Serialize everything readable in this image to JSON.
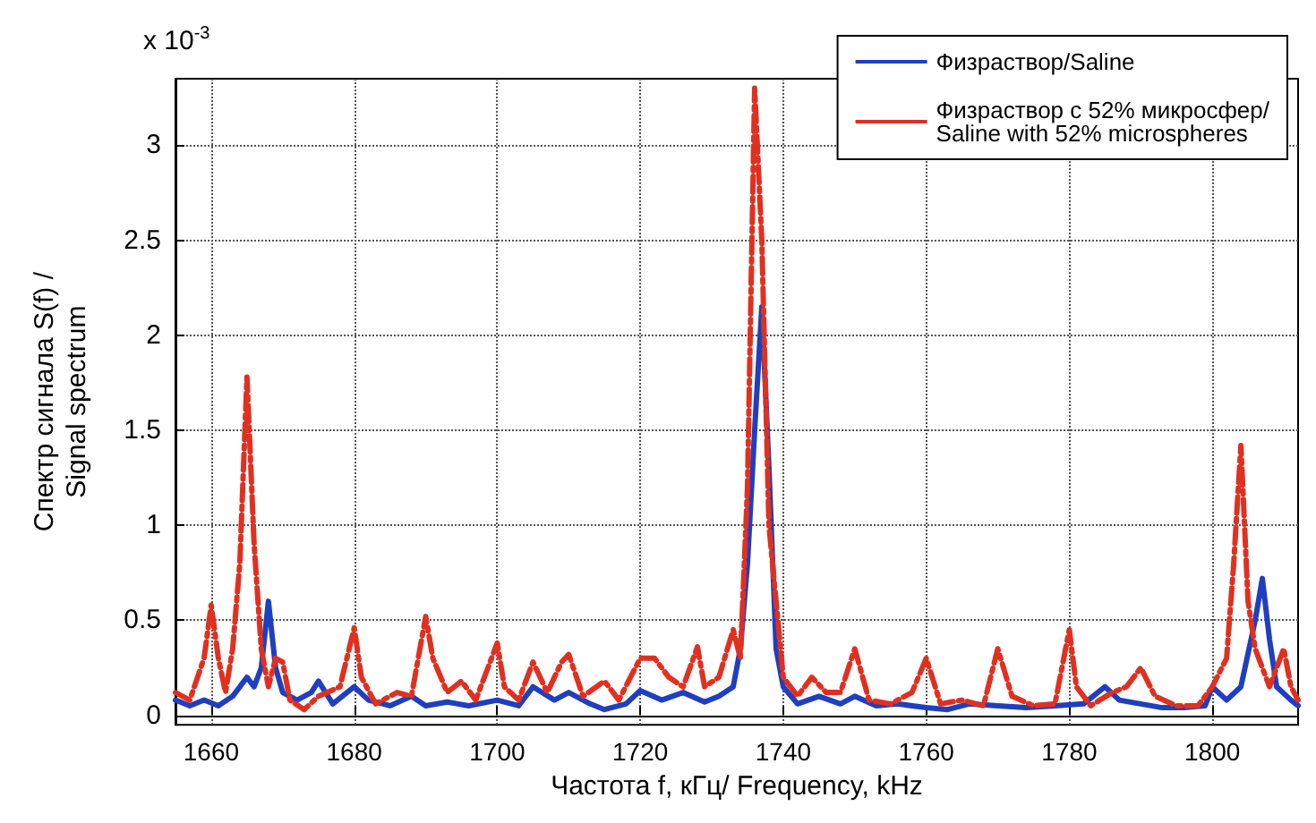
{
  "chart_data": {
    "type": "line",
    "xlabel": "Частота f, кГц/ Frequency, kHz",
    "ylabel": "Спектр сигнала S(f) /\nSignal spectrum",
    "annotations": [
      "x 10$^{-3}$"
    ],
    "xlim": [
      1655,
      1812
    ],
    "xticks": [
      1660,
      1680,
      1700,
      1720,
      1740,
      1760,
      1780,
      1800
    ],
    "ylim": [
      -0.05,
      3.35
    ],
    "yticks": [
      0,
      0.5,
      1,
      1.5,
      2,
      2.5,
      3
    ],
    "grid": true,
    "legend": "top right",
    "series": [
      {
        "name": "Физраствор/Saline",
        "color": "#1f3fbf",
        "line_style": "solid",
        "x": [
          1655,
          1657,
          1659,
          1661,
          1663,
          1665,
          1666,
          1667,
          1668,
          1669,
          1670,
          1672,
          1674,
          1675,
          1677,
          1680,
          1682,
          1685,
          1688,
          1690,
          1693,
          1696,
          1700,
          1703,
          1705,
          1708,
          1710,
          1713,
          1715,
          1718,
          1720,
          1723,
          1726,
          1729,
          1731,
          1733,
          1734,
          1735,
          1736,
          1737,
          1738,
          1739,
          1740,
          1742,
          1745,
          1748,
          1750,
          1753,
          1756,
          1760,
          1763,
          1766,
          1770,
          1774,
          1778,
          1782,
          1785,
          1787,
          1790,
          1793,
          1796,
          1799,
          1800,
          1802,
          1804,
          1806,
          1807,
          1808,
          1809,
          1811,
          1812
        ],
        "values": [
          0.08,
          0.05,
          0.08,
          0.05,
          0.1,
          0.2,
          0.15,
          0.25,
          0.6,
          0.25,
          0.12,
          0.08,
          0.12,
          0.18,
          0.06,
          0.15,
          0.08,
          0.05,
          0.1,
          0.05,
          0.07,
          0.05,
          0.08,
          0.05,
          0.15,
          0.08,
          0.12,
          0.06,
          0.03,
          0.06,
          0.13,
          0.08,
          0.12,
          0.07,
          0.1,
          0.15,
          0.35,
          0.8,
          1.5,
          2.15,
          1.3,
          0.35,
          0.15,
          0.06,
          0.1,
          0.06,
          0.1,
          0.05,
          0.06,
          0.04,
          0.03,
          0.06,
          0.05,
          0.04,
          0.05,
          0.06,
          0.15,
          0.08,
          0.06,
          0.04,
          0.04,
          0.05,
          0.15,
          0.08,
          0.15,
          0.5,
          0.72,
          0.4,
          0.15,
          0.08,
          0.05
        ]
      },
      {
        "name": "Физраствор с 52% микросфер/\nSaline with 52% microspheres",
        "color": "#e03020",
        "line_style": "dashed",
        "x": [
          1655,
          1657,
          1659,
          1660,
          1661,
          1662,
          1663,
          1664,
          1665,
          1666,
          1667,
          1668,
          1669,
          1670,
          1671,
          1673,
          1675,
          1678,
          1680,
          1681,
          1683,
          1686,
          1688,
          1690,
          1691,
          1693,
          1695,
          1697,
          1700,
          1701,
          1703,
          1705,
          1707,
          1709,
          1710,
          1712,
          1715,
          1717,
          1720,
          1722,
          1724,
          1726,
          1728,
          1729,
          1731,
          1733,
          1734,
          1735,
          1736,
          1737,
          1738,
          1739,
          1740,
          1742,
          1744,
          1746,
          1748,
          1750,
          1752,
          1755,
          1758,
          1760,
          1762,
          1765,
          1768,
          1770,
          1772,
          1775,
          1778,
          1780,
          1781,
          1783,
          1786,
          1788,
          1790,
          1792,
          1795,
          1798,
          1800,
          1802,
          1803,
          1804,
          1805,
          1806,
          1808,
          1809,
          1810,
          1811,
          1812
        ],
        "values": [
          0.12,
          0.08,
          0.3,
          0.58,
          0.3,
          0.12,
          0.35,
          0.8,
          1.78,
          0.9,
          0.35,
          0.15,
          0.3,
          0.28,
          0.08,
          0.03,
          0.1,
          0.15,
          0.46,
          0.2,
          0.06,
          0.12,
          0.1,
          0.52,
          0.3,
          0.12,
          0.18,
          0.08,
          0.38,
          0.15,
          0.08,
          0.28,
          0.12,
          0.28,
          0.32,
          0.1,
          0.18,
          0.08,
          0.3,
          0.3,
          0.2,
          0.15,
          0.36,
          0.15,
          0.2,
          0.45,
          0.3,
          1.2,
          3.3,
          2.5,
          1.0,
          0.6,
          0.2,
          0.1,
          0.2,
          0.12,
          0.12,
          0.35,
          0.08,
          0.06,
          0.12,
          0.3,
          0.06,
          0.08,
          0.05,
          0.35,
          0.1,
          0.05,
          0.06,
          0.45,
          0.15,
          0.05,
          0.12,
          0.15,
          0.25,
          0.1,
          0.05,
          0.05,
          0.15,
          0.3,
          0.8,
          1.42,
          0.6,
          0.35,
          0.15,
          0.25,
          0.35,
          0.15,
          0.08
        ]
      }
    ]
  }
}
